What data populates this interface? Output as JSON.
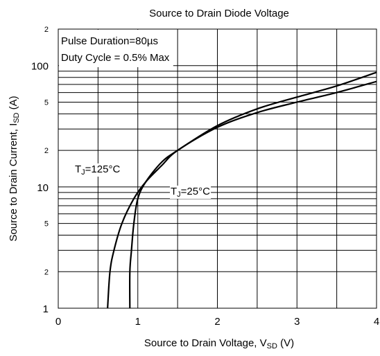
{
  "chart_data": {
    "type": "line",
    "title": "Source to Drain Diode Voltage",
    "x_label": {
      "main": "Source to Drain Voltage, V",
      "sub": "SD",
      "rest": " (V)"
    },
    "y_label": {
      "main": "Source to Drain Current, I",
      "sub": "SD",
      "rest": " (A)"
    },
    "annotations": [
      "Pulse Duration=80µs",
      "Duty Cycle = 0.5% Max"
    ],
    "log_y": true,
    "grid": true,
    "xlim": [
      0,
      4
    ],
    "xticks": [
      0,
      1,
      2,
      3,
      4
    ],
    "xminorticks": [
      0.5,
      1.5,
      2.5,
      3.5
    ],
    "ylim": [
      1,
      200
    ],
    "yticks": [
      1,
      {
        "value": 2,
        "label": "2"
      },
      {
        "value": 5,
        "label": "5"
      },
      10,
      {
        "value": 20,
        "label": "2"
      },
      {
        "value": 50,
        "label": "5"
      },
      100,
      {
        "value": 200,
        "label": "2"
      }
    ],
    "yminorticks": [
      3,
      4,
      6,
      7,
      8,
      9,
      30,
      40,
      60,
      70,
      80,
      90
    ],
    "series": [
      {
        "label": {
          "main": "T",
          "sub": "J",
          "rest": "=125°C"
        },
        "color": "#000000",
        "x": [
          0.62,
          0.65,
          0.7,
          0.8,
          0.95,
          1.1,
          1.3,
          1.5,
          2,
          2.5,
          3,
          3.5,
          4
        ],
        "values": [
          1,
          2,
          3,
          5,
          8,
          11,
          15,
          20,
          31,
          41,
          50,
          60,
          74
        ]
      },
      {
        "label": {
          "main": "T",
          "sub": "J",
          "rest": "=25°C"
        },
        "color": "#000000",
        "x": [
          0.9,
          0.9,
          0.92,
          0.95,
          1.0,
          1.1,
          1.3,
          1.5,
          2,
          2.5,
          3,
          3.5,
          4
        ],
        "values": [
          1,
          2,
          3,
          5,
          8,
          11,
          16,
          20,
          32,
          44,
          55,
          68,
          88
        ]
      }
    ]
  }
}
